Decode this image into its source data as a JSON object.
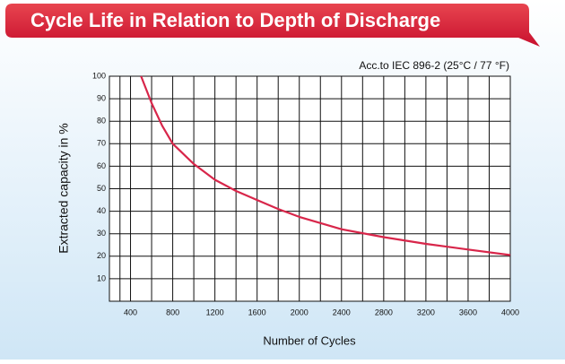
{
  "chart_data": {
    "type": "line",
    "title": "Cycle Life in Relation to Depth of Discharge",
    "subtitle": "Acc.to IEC 896-2 (25°C / 77 °F)",
    "x_label": "Number of Cycles",
    "y_label": "Extracted capacity in %",
    "x": [
      500,
      600,
      700,
      800,
      1000,
      1200,
      1400,
      1600,
      1800,
      2000,
      2400,
      2800,
      3200,
      3600,
      4000
    ],
    "values": [
      100,
      88,
      78,
      70,
      61,
      54,
      49,
      45,
      41,
      37.5,
      32,
      28.5,
      25.5,
      23,
      20.5
    ],
    "color": "#d8264a",
    "xlim": [
      200,
      4000
    ],
    "xticks": [
      400,
      800,
      1200,
      1600,
      2000,
      2400,
      2800,
      3200,
      3600,
      4000
    ],
    "ylim": [
      0,
      100
    ],
    "yticks": [
      10,
      20,
      30,
      40,
      50,
      60,
      70,
      80,
      90,
      100
    ],
    "grid": true
  }
}
